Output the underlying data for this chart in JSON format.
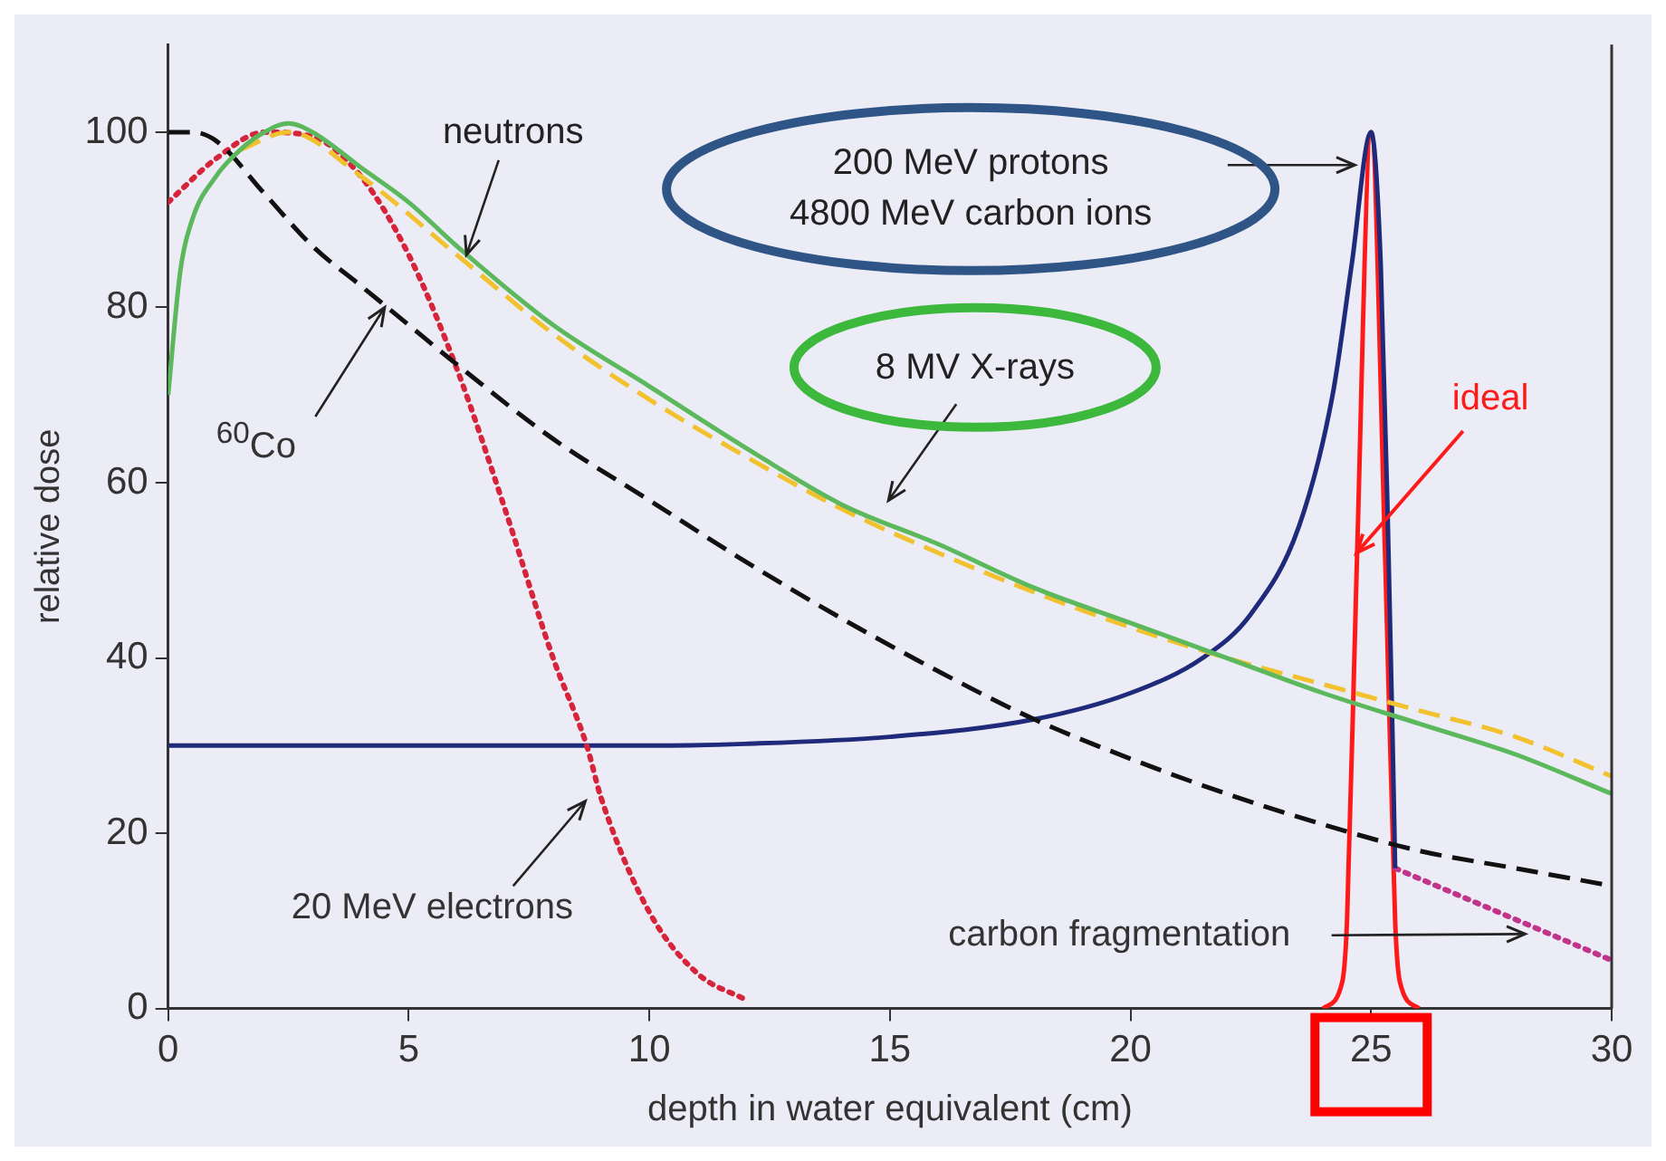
{
  "chart_data": {
    "type": "line",
    "xlabel": "depth in water equivalent (cm)",
    "ylabel": "relative dose",
    "xlim": [
      0,
      30
    ],
    "xticks": [
      0,
      5,
      10,
      15,
      20,
      25,
      30
    ],
    "ylim": [
      0,
      110
    ],
    "yticks": [
      0,
      20,
      40,
      60,
      80,
      100
    ],
    "legend": false,
    "marker": "none",
    "series": [
      {
        "color": "#5cb85c",
        "line_style": "solid",
        "x": [
          0,
          0.25,
          0.5,
          1,
          1.5,
          2,
          2.5,
          3,
          4,
          5,
          6,
          8,
          10,
          12,
          14,
          16,
          18,
          20,
          22,
          24,
          26,
          28,
          30
        ],
        "values": [
          70,
          84,
          90,
          95,
          98,
          100,
          101,
          100,
          96,
          92,
          87,
          78,
          71,
          64,
          57.5,
          53,
          48,
          44,
          40,
          36,
          32.5,
          29,
          24.5
        ]
      },
      {
        "color": "#f2c12e",
        "line_style": "dashed",
        "x": [
          1.5,
          2.5,
          4,
          6,
          8,
          10,
          12,
          14,
          16,
          18,
          20,
          22,
          24,
          26,
          28,
          30
        ],
        "values": [
          98,
          100,
          95,
          86,
          77,
          69.5,
          63,
          57,
          52,
          47.5,
          43.5,
          40,
          37,
          34,
          31,
          26.5
        ]
      },
      {
        "color": "#111111",
        "line_style": "dashed",
        "x": [
          0,
          0.5,
          1,
          2,
          3,
          4,
          5,
          6,
          8,
          10,
          12,
          14,
          16,
          18,
          20,
          22,
          24,
          26,
          28,
          30
        ],
        "values": [
          100,
          100,
          99,
          93,
          87,
          82.5,
          78,
          73.5,
          65,
          58,
          51,
          44.5,
          38.5,
          33,
          28.5,
          24.5,
          21,
          18,
          16,
          14
        ]
      },
      {
        "color": "#d6243a",
        "line_style": "dotted",
        "x": [
          0,
          1,
          2,
          3,
          4,
          5,
          6,
          7,
          8,
          8.7,
          9,
          10,
          11,
          12
        ],
        "values": [
          92,
          97,
          100,
          99.5,
          95,
          86,
          73,
          57,
          40,
          30,
          24,
          11,
          4,
          1
        ]
      },
      {
        "color": "#1f2a7a",
        "line_style": "solid",
        "x": [
          0,
          10,
          12,
          15,
          18,
          20,
          21.5,
          22.5,
          23.5,
          24.2,
          24.6,
          25,
          25.2,
          25.35,
          25.45,
          25.5
        ],
        "values": [
          30,
          30,
          30.2,
          31,
          33,
          36,
          40,
          45,
          55,
          70,
          85,
          100,
          85,
          55,
          30,
          16
        ]
      },
      {
        "color": "#c2338a",
        "line_style": "dotted",
        "x": [
          25.5,
          27,
          28.5,
          30
        ],
        "values": [
          16,
          12.5,
          9,
          5.5
        ]
      },
      {
        "color": "#ff1a1a",
        "line_style": "solid",
        "x": [
          24,
          24.4,
          24.5,
          24.7,
          25,
          25.3,
          25.5,
          25.6,
          26
        ],
        "values": [
          0,
          3,
          10,
          50,
          100,
          50,
          10,
          3,
          0
        ]
      }
    ],
    "annotations": [
      {
        "text": "neutrons",
        "x": 6.2,
        "y": 86
      },
      "8 MV X-rays",
      {
        "text": "$^{60}$Co",
        "x": 4.5,
        "y": 80
      },
      "200 MeV protons\n4800 MeV carbon ions",
      {
        "text": "ideal",
        "x": 24.7,
        "y": 52
      },
      "20 MeV electrons",
      {
        "text": "carbon fragmentation",
        "x": 28.2,
        "y": 8.5
      }
    ]
  }
}
